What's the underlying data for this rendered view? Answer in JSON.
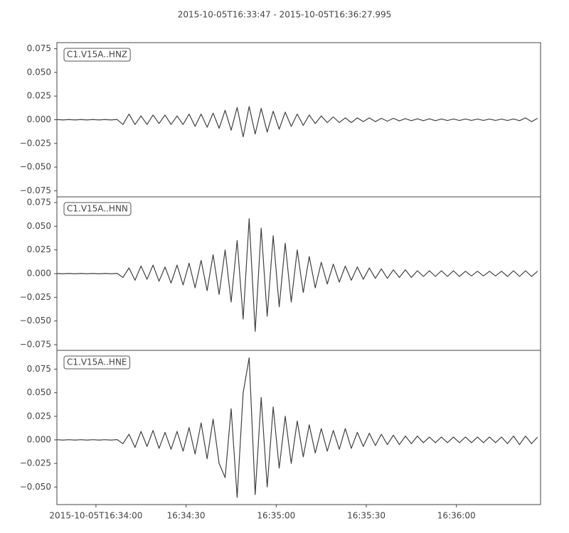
{
  "chart_data": [
    {
      "type": "line",
      "title": "2015-10-05T16:33:47  -  2015-10-05T16:36:27.995",
      "xlim": [
        "2015-10-05T16:33:47",
        "2015-10-05T16:36:27.995"
      ],
      "ylim": [
        -0.0814,
        0.0814
      ],
      "yticks": [
        0.075,
        {
          "value": 0.05,
          "label": "0.050"
        },
        0.025,
        {
          "value": 0,
          "label": "0.000"
        },
        {
          "value": -0.025,
          "label": "−0.025"
        },
        {
          "value": -0.05,
          "label": "−0.050"
        },
        {
          "value": -0.075,
          "label": "−0.075"
        }
      ],
      "x": [
        "2015-10-05T16:33:47",
        "2015-10-05T16:33:49",
        "2015-10-05T16:33:51",
        "2015-10-05T16:33:53",
        "2015-10-05T16:33:55",
        "2015-10-05T16:33:57",
        "2015-10-05T16:33:59",
        "2015-10-05T16:34:01",
        "2015-10-05T16:34:03",
        "2015-10-05T16:34:05",
        "2015-10-05T16:34:07",
        "2015-10-05T16:34:09",
        "2015-10-05T16:34:11",
        "2015-10-05T16:34:13",
        "2015-10-05T16:34:15",
        "2015-10-05T16:34:17",
        "2015-10-05T16:34:19",
        "2015-10-05T16:34:21",
        "2015-10-05T16:34:23",
        "2015-10-05T16:34:25",
        "2015-10-05T16:34:27",
        "2015-10-05T16:34:29",
        "2015-10-05T16:34:31",
        "2015-10-05T16:34:33",
        "2015-10-05T16:34:35",
        "2015-10-05T16:34:37",
        "2015-10-05T16:34:39",
        "2015-10-05T16:34:41",
        "2015-10-05T16:34:43",
        "2015-10-05T16:34:45",
        "2015-10-05T16:34:47",
        "2015-10-05T16:34:49",
        "2015-10-05T16:34:51",
        "2015-10-05T16:34:53",
        "2015-10-05T16:34:55",
        "2015-10-05T16:34:57",
        "2015-10-05T16:34:59",
        "2015-10-05T16:35:01",
        "2015-10-05T16:35:03",
        "2015-10-05T16:35:05",
        "2015-10-05T16:35:07",
        "2015-10-05T16:35:09",
        "2015-10-05T16:35:11",
        "2015-10-05T16:35:13",
        "2015-10-05T16:35:15",
        "2015-10-05T16:35:17",
        "2015-10-05T16:35:19",
        "2015-10-05T16:35:21",
        "2015-10-05T16:35:23",
        "2015-10-05T16:35:25",
        "2015-10-05T16:35:27",
        "2015-10-05T16:35:29",
        "2015-10-05T16:35:31",
        "2015-10-05T16:35:33",
        "2015-10-05T16:35:35",
        "2015-10-05T16:35:37",
        "2015-10-05T16:35:39",
        "2015-10-05T16:35:41",
        "2015-10-05T16:35:43",
        "2015-10-05T16:35:45",
        "2015-10-05T16:35:47",
        "2015-10-05T16:35:49",
        "2015-10-05T16:35:51",
        "2015-10-05T16:35:53",
        "2015-10-05T16:35:55",
        "2015-10-05T16:35:57",
        "2015-10-05T16:35:59",
        "2015-10-05T16:36:01",
        "2015-10-05T16:36:03",
        "2015-10-05T16:36:05",
        "2015-10-05T16:36:07",
        "2015-10-05T16:36:09",
        "2015-10-05T16:36:11",
        "2015-10-05T16:36:13",
        "2015-10-05T16:36:15",
        "2015-10-05T16:36:17",
        "2015-10-05T16:36:19",
        "2015-10-05T16:36:21",
        "2015-10-05T16:36:23",
        "2015-10-05T16:36:25",
        "2015-10-05T16:36:27"
      ],
      "series": [
        {
          "name": "C1.V15A..HNZ",
          "color": "#404040",
          "values": [
            0.0002,
            -0.0002,
            0.0002,
            -0.0002,
            0.0002,
            -0.0002,
            0.0002,
            -0.0002,
            0.0002,
            -0.0002,
            0.0003,
            -0.005,
            0.006,
            -0.005,
            0.004,
            -0.005,
            0.005,
            -0.004,
            0.005,
            -0.005,
            0.004,
            -0.005,
            0.006,
            -0.007,
            0.006,
            -0.008,
            0.007,
            -0.009,
            0.01,
            -0.011,
            0.013,
            -0.018,
            0.014,
            -0.015,
            0.012,
            -0.013,
            0.009,
            -0.01,
            0.008,
            -0.007,
            0.006,
            -0.006,
            0.005,
            -0.004,
            0.004,
            -0.003,
            0.003,
            -0.003,
            0.002,
            -0.003,
            0.002,
            -0.002,
            0.002,
            -0.002,
            0.0015,
            -0.0015,
            0.0015,
            -0.0012,
            0.0012,
            -0.001,
            0.001,
            -0.001,
            0.001,
            -0.001,
            0.0008,
            -0.0008,
            0.0008,
            -0.0008,
            0.0008,
            -0.0007,
            0.0007,
            -0.0007,
            0.0007,
            -0.0007,
            0.0007,
            -0.0008,
            0.0008,
            -0.001,
            0.002,
            -0.002,
            0.0015
          ]
        }
      ]
    },
    {
      "type": "line",
      "xlim": [
        "2015-10-05T16:33:47",
        "2015-10-05T16:36:27.995"
      ],
      "ylim": [
        -0.081,
        0.081
      ],
      "yticks": [
        0.075,
        {
          "value": 0.05,
          "label": "0.050"
        },
        0.025,
        {
          "value": 0,
          "label": "0.000"
        },
        {
          "value": -0.025,
          "label": "−0.025"
        },
        {
          "value": -0.05,
          "label": "−0.050"
        },
        {
          "value": -0.075,
          "label": "−0.075"
        }
      ],
      "x": [
        "2015-10-05T16:33:47",
        "2015-10-05T16:33:49",
        "2015-10-05T16:33:51",
        "2015-10-05T16:33:53",
        "2015-10-05T16:33:55",
        "2015-10-05T16:33:57",
        "2015-10-05T16:33:59",
        "2015-10-05T16:34:01",
        "2015-10-05T16:34:03",
        "2015-10-05T16:34:05",
        "2015-10-05T16:34:07",
        "2015-10-05T16:34:09",
        "2015-10-05T16:34:11",
        "2015-10-05T16:34:13",
        "2015-10-05T16:34:15",
        "2015-10-05T16:34:17",
        "2015-10-05T16:34:19",
        "2015-10-05T16:34:21",
        "2015-10-05T16:34:23",
        "2015-10-05T16:34:25",
        "2015-10-05T16:34:27",
        "2015-10-05T16:34:29",
        "2015-10-05T16:34:31",
        "2015-10-05T16:34:33",
        "2015-10-05T16:34:35",
        "2015-10-05T16:34:37",
        "2015-10-05T16:34:39",
        "2015-10-05T16:34:41",
        "2015-10-05T16:34:43",
        "2015-10-05T16:34:45",
        "2015-10-05T16:34:47",
        "2015-10-05T16:34:49",
        "2015-10-05T16:34:51",
        "2015-10-05T16:34:53",
        "2015-10-05T16:34:55",
        "2015-10-05T16:34:57",
        "2015-10-05T16:34:59",
        "2015-10-05T16:35:01",
        "2015-10-05T16:35:03",
        "2015-10-05T16:35:05",
        "2015-10-05T16:35:07",
        "2015-10-05T16:35:09",
        "2015-10-05T16:35:11",
        "2015-10-05T16:35:13",
        "2015-10-05T16:35:15",
        "2015-10-05T16:35:17",
        "2015-10-05T16:35:19",
        "2015-10-05T16:35:21",
        "2015-10-05T16:35:23",
        "2015-10-05T16:35:25",
        "2015-10-05T16:35:27",
        "2015-10-05T16:35:29",
        "2015-10-05T16:35:31",
        "2015-10-05T16:35:33",
        "2015-10-05T16:35:35",
        "2015-10-05T16:35:37",
        "2015-10-05T16:35:39",
        "2015-10-05T16:35:41",
        "2015-10-05T16:35:43",
        "2015-10-05T16:35:45",
        "2015-10-05T16:35:47",
        "2015-10-05T16:35:49",
        "2015-10-05T16:35:51",
        "2015-10-05T16:35:53",
        "2015-10-05T16:35:55",
        "2015-10-05T16:35:57",
        "2015-10-05T16:35:59",
        "2015-10-05T16:36:01",
        "2015-10-05T16:36:03",
        "2015-10-05T16:36:05",
        "2015-10-05T16:36:07",
        "2015-10-05T16:36:09",
        "2015-10-05T16:36:11",
        "2015-10-05T16:36:13",
        "2015-10-05T16:36:15",
        "2015-10-05T16:36:17",
        "2015-10-05T16:36:19",
        "2015-10-05T16:36:21",
        "2015-10-05T16:36:23",
        "2015-10-05T16:36:25",
        "2015-10-05T16:36:27"
      ],
      "series": [
        {
          "name": "C1.V15A..HNN",
          "color": "#404040",
          "values": [
            0.0002,
            -0.0002,
            0.0002,
            -0.0002,
            0.0002,
            -0.0002,
            0.0002,
            -0.0002,
            0.0002,
            -0.0002,
            0.0003,
            -0.004,
            0.006,
            -0.007,
            0.008,
            -0.006,
            0.009,
            -0.008,
            0.007,
            -0.01,
            0.009,
            -0.012,
            0.011,
            -0.015,
            0.014,
            -0.018,
            0.02,
            -0.022,
            0.025,
            -0.03,
            0.035,
            -0.048,
            0.058,
            -0.061,
            0.048,
            -0.045,
            0.04,
            -0.035,
            0.032,
            -0.03,
            0.025,
            -0.02,
            0.018,
            -0.015,
            0.012,
            -0.011,
            0.01,
            -0.009,
            0.008,
            -0.007,
            0.007,
            -0.006,
            0.006,
            -0.005,
            0.005,
            -0.005,
            0.004,
            -0.004,
            0.004,
            -0.004,
            0.003,
            -0.003,
            0.003,
            -0.003,
            0.003,
            -0.003,
            0.003,
            -0.003,
            0.0025,
            -0.0025,
            0.0025,
            -0.0025,
            0.0025,
            -0.0025,
            0.0025,
            -0.003,
            0.003,
            -0.003,
            0.003,
            -0.003,
            0.0025
          ]
        }
      ]
    },
    {
      "type": "line",
      "xlim": [
        "2015-10-05T16:33:47",
        "2015-10-05T16:36:27.995"
      ],
      "ylim": [
        -0.0686,
        0.0949
      ],
      "yticks": [
        0.075,
        {
          "value": 0.05,
          "label": "0.050"
        },
        0.025,
        {
          "value": 0,
          "label": "0.000"
        },
        {
          "value": -0.025,
          "label": "−0.025"
        },
        {
          "value": -0.05,
          "label": "−0.050"
        }
      ],
      "xticks": [
        {
          "value": "2015-10-05T16:34:00",
          "label": "2015-10-05T16:34:00"
        },
        {
          "value": "2015-10-05T16:34:30",
          "label": "16:34:30"
        },
        {
          "value": "2015-10-05T16:35:00",
          "label": "16:35:00"
        },
        {
          "value": "2015-10-05T16:35:30",
          "label": "16:35:30"
        },
        {
          "value": "2015-10-05T16:36:00",
          "label": "16:36:00"
        }
      ],
      "x": [
        "2015-10-05T16:33:47",
        "2015-10-05T16:33:49",
        "2015-10-05T16:33:51",
        "2015-10-05T16:33:53",
        "2015-10-05T16:33:55",
        "2015-10-05T16:33:57",
        "2015-10-05T16:33:59",
        "2015-10-05T16:34:01",
        "2015-10-05T16:34:03",
        "2015-10-05T16:34:05",
        "2015-10-05T16:34:07",
        "2015-10-05T16:34:09",
        "2015-10-05T16:34:11",
        "2015-10-05T16:34:13",
        "2015-10-05T16:34:15",
        "2015-10-05T16:34:17",
        "2015-10-05T16:34:19",
        "2015-10-05T16:34:21",
        "2015-10-05T16:34:23",
        "2015-10-05T16:34:25",
        "2015-10-05T16:34:27",
        "2015-10-05T16:34:29",
        "2015-10-05T16:34:31",
        "2015-10-05T16:34:33",
        "2015-10-05T16:34:35",
        "2015-10-05T16:34:37",
        "2015-10-05T16:34:39",
        "2015-10-05T16:34:41",
        "2015-10-05T16:34:43",
        "2015-10-05T16:34:45",
        "2015-10-05T16:34:47",
        "2015-10-05T16:34:49",
        "2015-10-05T16:34:51",
        "2015-10-05T16:34:53",
        "2015-10-05T16:34:55",
        "2015-10-05T16:34:57",
        "2015-10-05T16:34:59",
        "2015-10-05T16:35:01",
        "2015-10-05T16:35:03",
        "2015-10-05T16:35:05",
        "2015-10-05T16:35:07",
        "2015-10-05T16:35:09",
        "2015-10-05T16:35:11",
        "2015-10-05T16:35:13",
        "2015-10-05T16:35:15",
        "2015-10-05T16:35:17",
        "2015-10-05T16:35:19",
        "2015-10-05T16:35:21",
        "2015-10-05T16:35:23",
        "2015-10-05T16:35:25",
        "2015-10-05T16:35:27",
        "2015-10-05T16:35:29",
        "2015-10-05T16:35:31",
        "2015-10-05T16:35:33",
        "2015-10-05T16:35:35",
        "2015-10-05T16:35:37",
        "2015-10-05T16:35:39",
        "2015-10-05T16:35:41",
        "2015-10-05T16:35:43",
        "2015-10-05T16:35:45",
        "2015-10-05T16:35:47",
        "2015-10-05T16:35:49",
        "2015-10-05T16:35:51",
        "2015-10-05T16:35:53",
        "2015-10-05T16:35:55",
        "2015-10-05T16:35:57",
        "2015-10-05T16:35:59",
        "2015-10-05T16:36:01",
        "2015-10-05T16:36:03",
        "2015-10-05T16:36:05",
        "2015-10-05T16:36:07",
        "2015-10-05T16:36:09",
        "2015-10-05T16:36:11",
        "2015-10-05T16:36:13",
        "2015-10-05T16:36:15",
        "2015-10-05T16:36:17",
        "2015-10-05T16:36:19",
        "2015-10-05T16:36:21",
        "2015-10-05T16:36:23",
        "2015-10-05T16:36:25",
        "2015-10-05T16:36:27"
      ],
      "series": [
        {
          "name": "C1.V15A..HNE",
          "color": "#404040",
          "values": [
            0.0002,
            -0.0002,
            0.0002,
            -0.0002,
            0.0002,
            -0.0002,
            0.0002,
            -0.0002,
            0.0002,
            -0.0002,
            0.0003,
            -0.004,
            0.006,
            -0.008,
            0.009,
            -0.007,
            0.01,
            -0.009,
            0.008,
            -0.01,
            0.009,
            -0.012,
            0.013,
            -0.015,
            0.018,
            -0.02,
            0.022,
            -0.025,
            -0.04,
            0.033,
            -0.061,
            0.05,
            0.087,
            -0.058,
            0.045,
            -0.05,
            0.035,
            -0.03,
            0.025,
            -0.025,
            0.02,
            -0.018,
            0.016,
            -0.014,
            0.012,
            -0.012,
            0.01,
            -0.01,
            0.012,
            -0.009,
            0.008,
            -0.007,
            0.007,
            -0.006,
            0.006,
            -0.005,
            0.005,
            -0.005,
            0.004,
            -0.004,
            0.004,
            -0.003,
            0.003,
            -0.003,
            0.003,
            -0.003,
            0.003,
            -0.003,
            0.003,
            -0.003,
            0.003,
            -0.003,
            0.003,
            -0.003,
            0.003,
            -0.004,
            0.004,
            -0.005,
            0.004,
            -0.004,
            0.003
          ]
        }
      ]
    }
  ]
}
